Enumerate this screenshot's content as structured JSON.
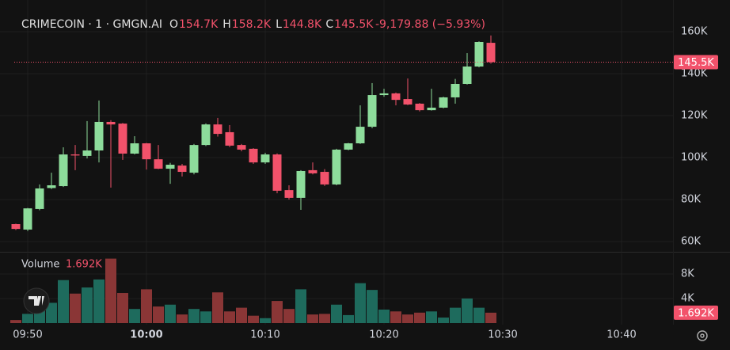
{
  "chart_data": {
    "type": "candlestick",
    "header": {
      "symbol": "CRIMECOIN · 1 · GMGN.AI",
      "ohlc": [
        {
          "key": "O",
          "value": "154.7K"
        },
        {
          "key": "H",
          "value": "158.2K"
        },
        {
          "key": "L",
          "value": "144.8K"
        },
        {
          "key": "C",
          "value": "145.5K"
        }
      ],
      "change": "-9,179.88 (−5.93%)"
    },
    "x": [
      -1,
      0,
      1,
      2,
      3,
      4,
      5,
      6,
      7,
      8,
      9,
      10,
      11,
      12,
      13,
      14,
      15,
      16,
      17,
      18,
      19,
      20,
      21,
      22,
      23,
      24,
      25,
      26,
      27,
      28,
      29,
      30,
      31,
      32,
      33,
      34,
      35,
      36,
      37,
      38,
      39
    ],
    "xlim": [
      -2.333,
      54.333
    ],
    "xticks": [
      {
        "value": 0,
        "label": "09:50"
      },
      {
        "value": 10,
        "label": "10:00"
      },
      {
        "value": 20,
        "label": "10:10"
      },
      {
        "value": 30,
        "label": "10:20"
      },
      {
        "value": 40,
        "label": "10:30"
      },
      {
        "value": 50,
        "label": "10:40"
      }
    ],
    "open": [
      68.3,
      65.7,
      75.5,
      85.5,
      86.4,
      101.5,
      100.8,
      103.4,
      117,
      116.2,
      101.9,
      106.8,
      99.2,
      94.7,
      96.2,
      92.8,
      106,
      115.8,
      112.1,
      106,
      104.2,
      97.7,
      101.5,
      84.5,
      80.8,
      94,
      93.2,
      87.2,
      103.8,
      106.8,
      114.7,
      129.8,
      130.6,
      127.9,
      125.7,
      122.6,
      123.8,
      128.7,
      135.1,
      143.4,
      154.7
    ],
    "high": [
      68.5,
      76,
      87.2,
      92.8,
      104.9,
      106,
      117.4,
      127.2,
      117.8,
      116.5,
      110.2,
      107,
      106,
      97.5,
      97,
      106.5,
      116.3,
      118.9,
      115.5,
      106.5,
      104.5,
      102.3,
      102,
      86.8,
      94,
      97.7,
      94.5,
      104.2,
      107,
      124.9,
      135.5,
      132.8,
      131,
      137.7,
      126,
      132.8,
      129,
      137.5,
      149.8,
      155.4,
      158.2
    ],
    "low": [
      65.5,
      65,
      74.9,
      85,
      86,
      94,
      99.6,
      97.7,
      85.7,
      98.9,
      101.5,
      94.3,
      94.5,
      87.5,
      91,
      92,
      105.5,
      110,
      105,
      103,
      97,
      97,
      83,
      80,
      75.1,
      92,
      86.5,
      86.8,
      103.5,
      106.5,
      114,
      129,
      124.9,
      125,
      122,
      122.4,
      123.5,
      125.7,
      134.8,
      143,
      144.8
    ],
    "close": [
      66,
      75.8,
      85.3,
      86.8,
      101.5,
      101,
      103.4,
      117,
      115.8,
      101.9,
      106.8,
      99.2,
      94.7,
      96.6,
      93.2,
      106,
      115.8,
      111.3,
      105.7,
      103.8,
      97.7,
      101.5,
      84.2,
      80.8,
      93.6,
      92.5,
      87.2,
      103.8,
      106.8,
      114.7,
      129.8,
      130.6,
      127.5,
      125.3,
      122.6,
      123.8,
      128.7,
      135.1,
      143.4,
      155.1,
      145.5
    ],
    "up_color": "#8ddc9b",
    "down_color": "#f2526b",
    "ylim": [
      55.1,
      175.1
    ],
    "yticks": [
      {
        "value": 60,
        "label": "60K"
      },
      {
        "value": 80,
        "label": "80K"
      },
      {
        "value": 100,
        "label": "100K"
      },
      {
        "value": 120,
        "label": "120K"
      },
      {
        "value": 140,
        "label": "140K"
      },
      {
        "value": 160,
        "label": "160K"
      }
    ],
    "last_price": {
      "value": 145.5,
      "label": "145.5K"
    },
    "volume": {
      "name": "Volume",
      "values": [
        0.5,
        1.5,
        2.0,
        3.3,
        7.0,
        4.8,
        5.8,
        7.1,
        10.5,
        4.9,
        2.3,
        5.5,
        2.7,
        3.0,
        1.4,
        2.3,
        1.9,
        5.0,
        1.9,
        2.5,
        1.2,
        0.8,
        3.6,
        2.3,
        5.5,
        1.4,
        1.5,
        3.0,
        1.3,
        6.5,
        5.4,
        2.2,
        1.9,
        1.4,
        1.7,
        1.9,
        0.9,
        2.5,
        4.0,
        2.5,
        1.692
      ],
      "last_label": "1.692K",
      "up_color": "#1e6b5d",
      "down_color": "#8a3636",
      "ylim": [
        0,
        11.35
      ],
      "yticks": [
        {
          "value": 4,
          "label": "4K"
        },
        {
          "value": 8,
          "label": "8K"
        }
      ]
    },
    "grid": true
  }
}
